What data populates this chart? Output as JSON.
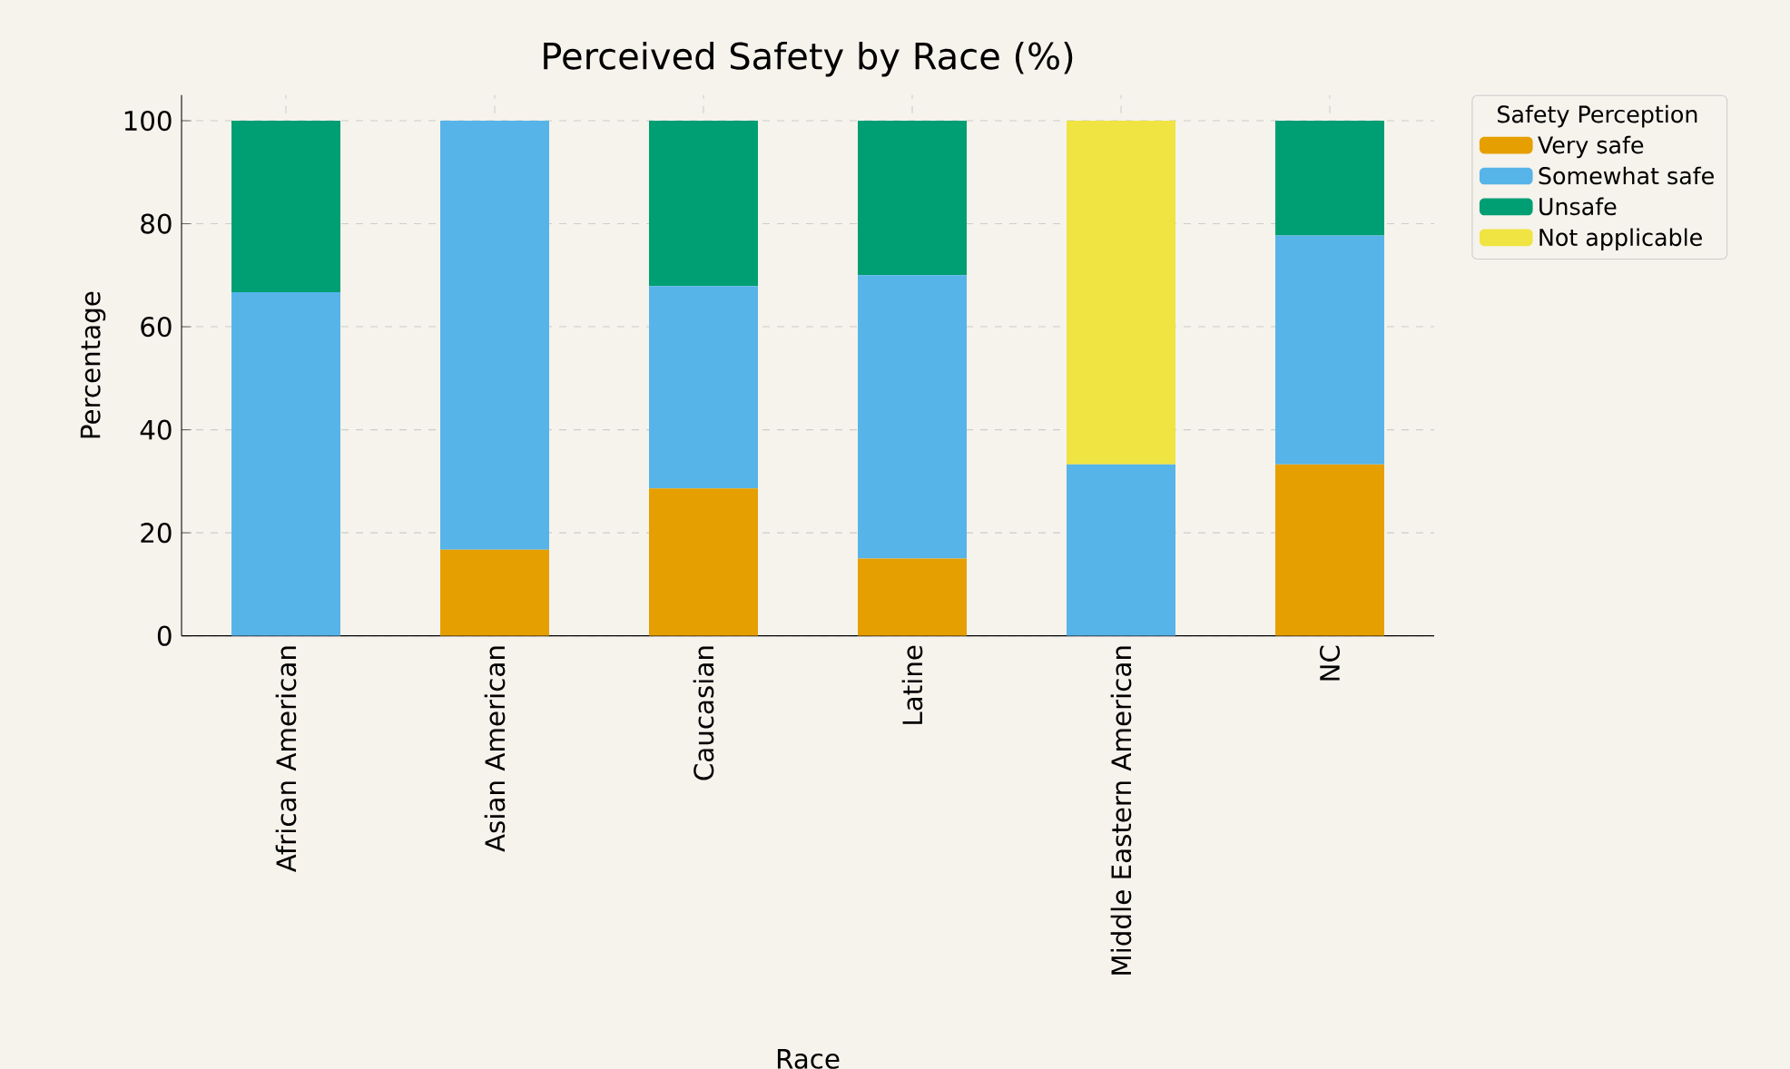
{
  "chart_data": {
    "type": "bar",
    "title": "Perceived Safety by Race (%)",
    "xlabel": "Race",
    "ylabel": "Percentage",
    "legend_title": "Safety Perception",
    "categories": [
      "African American",
      "Asian American",
      "Caucasian",
      "Latine",
      "Middle Eastern American",
      "NC"
    ],
    "stacked": true,
    "series": [
      {
        "name": "Very safe",
        "color": "#e69f00",
        "values": [
          0,
          16.7,
          28.6,
          15,
          0,
          33.3
        ]
      },
      {
        "name": "Somewhat safe",
        "color": "#56b4e9",
        "values": [
          66.7,
          83.3,
          39.3,
          55,
          33.3,
          44.4
        ]
      },
      {
        "name": "Unsafe",
        "color": "#009e73",
        "values": [
          33.3,
          0,
          32.1,
          30,
          0,
          22.3
        ]
      },
      {
        "name": "Not applicable",
        "color": "#f0e442",
        "values": [
          0,
          0,
          0,
          0,
          66.7,
          0
        ]
      }
    ],
    "ylim": [
      0,
      105
    ],
    "yticks": [
      0,
      20,
      40,
      60,
      80,
      100
    ],
    "grid": true,
    "legend": "top right"
  }
}
